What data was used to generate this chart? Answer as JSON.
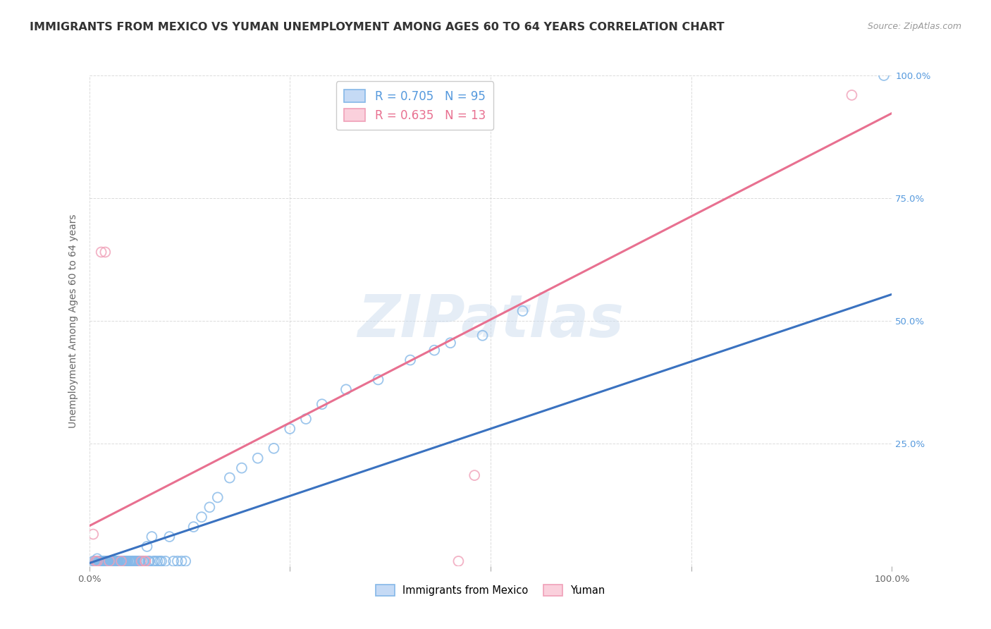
{
  "title": "IMMIGRANTS FROM MEXICO VS YUMAN UNEMPLOYMENT AMONG AGES 60 TO 64 YEARS CORRELATION CHART",
  "source": "Source: ZipAtlas.com",
  "ylabel": "Unemployment Among Ages 60 to 64 years",
  "xlim": [
    0,
    1
  ],
  "ylim": [
    0,
    1
  ],
  "yticks": [
    0.0,
    0.25,
    0.5,
    0.75,
    1.0
  ],
  "xticks": [
    0.0,
    0.25,
    0.5,
    0.75,
    1.0
  ],
  "background_color": "#ffffff",
  "grid_color": "#cccccc",
  "watermark": "ZIPatlas",
  "blue_scatter_x": [
    0.005,
    0.007,
    0.008,
    0.009,
    0.01,
    0.01,
    0.011,
    0.012,
    0.013,
    0.014,
    0.015,
    0.015,
    0.016,
    0.017,
    0.018,
    0.019,
    0.02,
    0.02,
    0.021,
    0.022,
    0.023,
    0.024,
    0.025,
    0.026,
    0.027,
    0.028,
    0.029,
    0.03,
    0.031,
    0.032,
    0.033,
    0.034,
    0.035,
    0.036,
    0.037,
    0.038,
    0.04,
    0.041,
    0.042,
    0.043,
    0.044,
    0.045,
    0.046,
    0.047,
    0.048,
    0.05,
    0.051,
    0.052,
    0.053,
    0.054,
    0.055,
    0.056,
    0.057,
    0.058,
    0.06,
    0.062,
    0.063,
    0.065,
    0.067,
    0.068,
    0.07,
    0.072,
    0.074,
    0.075,
    0.078,
    0.08,
    0.082,
    0.085,
    0.088,
    0.09,
    0.095,
    0.1,
    0.105,
    0.11,
    0.115,
    0.12,
    0.13,
    0.14,
    0.15,
    0.16,
    0.175,
    0.19,
    0.21,
    0.23,
    0.25,
    0.27,
    0.29,
    0.32,
    0.36,
    0.4,
    0.43,
    0.45,
    0.49,
    0.54,
    0.99
  ],
  "blue_scatter_y": [
    0.01,
    0.01,
    0.01,
    0.01,
    0.015,
    0.01,
    0.01,
    0.01,
    0.01,
    0.01,
    0.01,
    0.01,
    0.01,
    0.01,
    0.01,
    0.01,
    0.01,
    0.01,
    0.01,
    0.01,
    0.01,
    0.01,
    0.01,
    0.01,
    0.01,
    0.01,
    0.01,
    0.01,
    0.01,
    0.01,
    0.01,
    0.01,
    0.01,
    0.01,
    0.01,
    0.01,
    0.01,
    0.01,
    0.01,
    0.01,
    0.01,
    0.01,
    0.01,
    0.01,
    0.01,
    0.01,
    0.01,
    0.01,
    0.01,
    0.01,
    0.01,
    0.01,
    0.01,
    0.01,
    0.01,
    0.01,
    0.01,
    0.01,
    0.01,
    0.01,
    0.01,
    0.04,
    0.01,
    0.01,
    0.06,
    0.01,
    0.01,
    0.01,
    0.01,
    0.01,
    0.01,
    0.06,
    0.01,
    0.01,
    0.01,
    0.01,
    0.08,
    0.1,
    0.12,
    0.14,
    0.18,
    0.2,
    0.22,
    0.24,
    0.28,
    0.3,
    0.33,
    0.36,
    0.38,
    0.42,
    0.44,
    0.455,
    0.47,
    0.52,
    1.0
  ],
  "pink_scatter_x": [
    0.005,
    0.008,
    0.01,
    0.015,
    0.02,
    0.025,
    0.04,
    0.065,
    0.07,
    0.46,
    0.48,
    0.95,
    0.07
  ],
  "pink_scatter_y": [
    0.065,
    0.01,
    0.01,
    0.64,
    0.64,
    0.01,
    0.01,
    0.01,
    0.01,
    0.01,
    0.185,
    0.96,
    0.01
  ],
  "blue_line_x": [
    -0.02,
    1.02
  ],
  "blue_line_y": [
    -0.005,
    0.565
  ],
  "pink_line_x": [
    -0.02,
    1.02
  ],
  "pink_line_y": [
    0.065,
    0.94
  ],
  "blue_color": "#85b8e8",
  "pink_color": "#f0a0b8",
  "blue_line_color": "#3a72c0",
  "pink_line_color": "#e87090",
  "title_fontsize": 11.5,
  "axis_label_fontsize": 10,
  "tick_fontsize": 9.5,
  "legend_fontsize": 12,
  "right_ytick_color": "#5599dd",
  "legend_blue_text_color": "#5599dd",
  "legend_pink_text_color": "#e87090"
}
